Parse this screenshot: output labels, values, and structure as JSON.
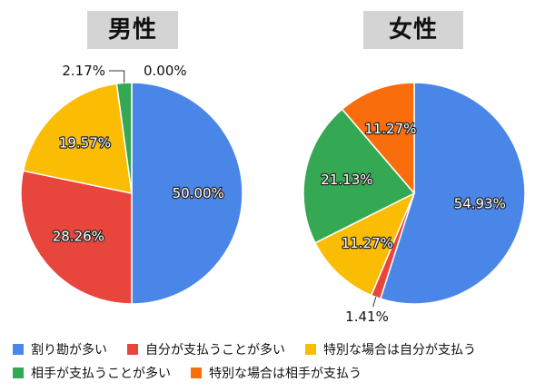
{
  "chart_data": [
    {
      "type": "pie",
      "title": "男性",
      "categories": [
        "割り勘が多い",
        "自分が支払うことが多い",
        "特別な場合は自分が支払う",
        "相手が支払うことが多い",
        "特別な場合は相手が支払う"
      ],
      "values": [
        50.0,
        28.26,
        19.57,
        2.17,
        0.0
      ],
      "labels": [
        "50.00%",
        "28.26%",
        "19.57%",
        "2.17%",
        "0.00%"
      ]
    },
    {
      "type": "pie",
      "title": "女性",
      "categories": [
        "割り勘が多い",
        "自分が支払うことが多い",
        "特別な場合は自分が支払う",
        "相手が支払うことが多い",
        "特別な場合は相手が支払う"
      ],
      "values": [
        54.93,
        1.41,
        11.27,
        21.13,
        11.27
      ],
      "labels": [
        "54.93%",
        "1.41%",
        "11.27%",
        "21.13%",
        "11.27%"
      ]
    }
  ],
  "legend": {
    "items": [
      {
        "label": "割り勘が多い",
        "color": "#4a86e8"
      },
      {
        "label": "自分が支払うことが多い",
        "color": "#e8453c"
      },
      {
        "label": "特別な場合は自分が支払う",
        "color": "#fbbc04"
      },
      {
        "label": "相手が支払うことが多い",
        "color": "#34a853"
      },
      {
        "label": "特別な場合は相手が支払う",
        "color": "#fa6d0c"
      }
    ]
  }
}
